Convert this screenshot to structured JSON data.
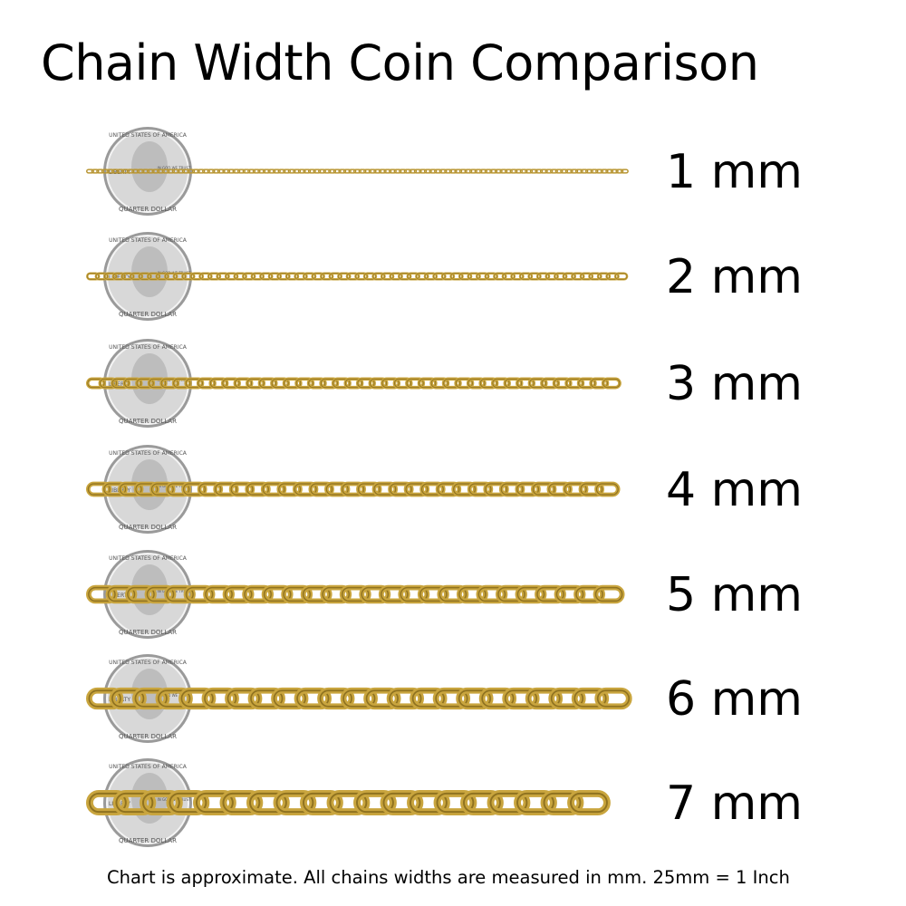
{
  "title": "Chain Width Coin Comparison",
  "coin_lettering": [
    "UNITED STATES OF AMERICA",
    "LIBERTY",
    "IN GOD WE TRUST",
    "QUARTER DOLLAR"
  ],
  "rows": [
    {
      "mm": 1,
      "label": "1 mm"
    },
    {
      "mm": 2,
      "label": "2 mm"
    },
    {
      "mm": 3,
      "label": "3 mm"
    },
    {
      "mm": 4,
      "label": "4 mm"
    },
    {
      "mm": 5,
      "label": "5 mm"
    },
    {
      "mm": 6,
      "label": "6 mm"
    },
    {
      "mm": 7,
      "label": "7 mm"
    }
  ],
  "footer": "Chart is approximate. All chains widths are measured in mm.  25mm = 1 Inch",
  "colors": {
    "gold": "#c9a53e",
    "gold_dark": "#8f7220",
    "coin": "#d8d8d8"
  }
}
